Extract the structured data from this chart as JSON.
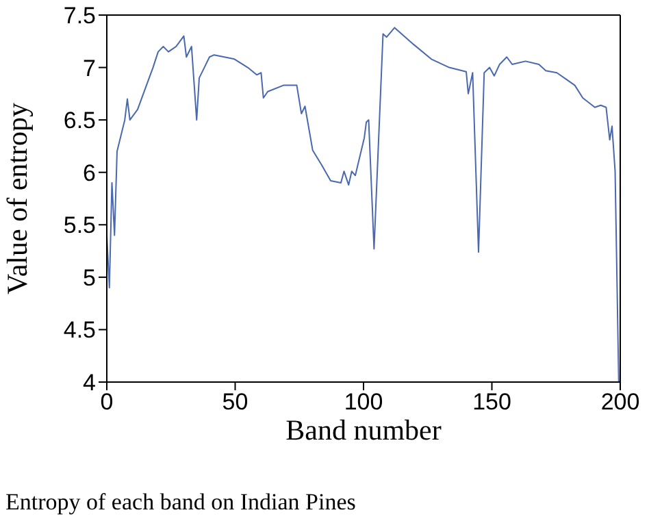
{
  "chart_data": {
    "type": "line",
    "xlabel": "Band number",
    "ylabel": "Value of entropy",
    "annotations": [
      "Entropy of each band on Indian Pines"
    ],
    "xlim": [
      0,
      200
    ],
    "xticks": [
      0,
      50,
      100,
      150,
      200
    ],
    "ylim": [
      4,
      7.5
    ],
    "yticks": [
      4,
      4.5,
      5,
      5.5,
      6,
      6.5,
      7,
      7.5
    ],
    "legend": false,
    "marker": "none",
    "line_style": "solid",
    "series": [
      {
        "color": "#4a68b0",
        "x": [
          0,
          1,
          2,
          3,
          4,
          7,
          8,
          9,
          12,
          15,
          18,
          20,
          22,
          24,
          27,
          30,
          31,
          33,
          35,
          36,
          38,
          40,
          41.8,
          49.7,
          54.9,
          58.4,
          60.1,
          61,
          62.7,
          68.8,
          74,
          75.8,
          77.2,
          80.2,
          83.7,
          87.2,
          91.2,
          92.4,
          94.2,
          95.4,
          96.8,
          100.3,
          101.1,
          102,
          104.1,
          107.6,
          109,
          112.1,
          119.5,
          126.4,
          133.4,
          140,
          140.8,
          142.5,
          144.8,
          147,
          149.1,
          150.9,
          153,
          155.8,
          157.9,
          163.1,
          168.3,
          171,
          175.3,
          178.8,
          182.3,
          185.4,
          190.1,
          192.4,
          194.5,
          195.9,
          196.8,
          198,
          199.4,
          200
        ],
        "values": [
          5.4,
          4.9,
          5.9,
          5.4,
          6.2,
          6.5,
          6.7,
          6.5,
          6.6,
          6.8,
          7.0,
          7.15,
          7.2,
          7.15,
          7.2,
          7.3,
          7.1,
          7.2,
          6.5,
          6.9,
          7.0,
          7.1,
          7.12,
          7.08,
          7.0,
          6.93,
          6.95,
          6.71,
          6.77,
          6.83,
          6.83,
          6.56,
          6.63,
          6.21,
          6.07,
          5.92,
          5.9,
          6.01,
          5.88,
          6.01,
          5.97,
          6.33,
          6.48,
          6.5,
          5.27,
          7.32,
          7.29,
          7.38,
          7.22,
          7.08,
          7.0,
          6.96,
          6.75,
          6.95,
          5.24,
          6.95,
          7.0,
          6.92,
          7.03,
          7.1,
          7.03,
          7.06,
          7.03,
          6.97,
          6.95,
          6.89,
          6.83,
          6.71,
          6.62,
          6.64,
          6.62,
          6.31,
          6.44,
          6.01,
          4.01,
          4.0
        ]
      }
    ]
  }
}
